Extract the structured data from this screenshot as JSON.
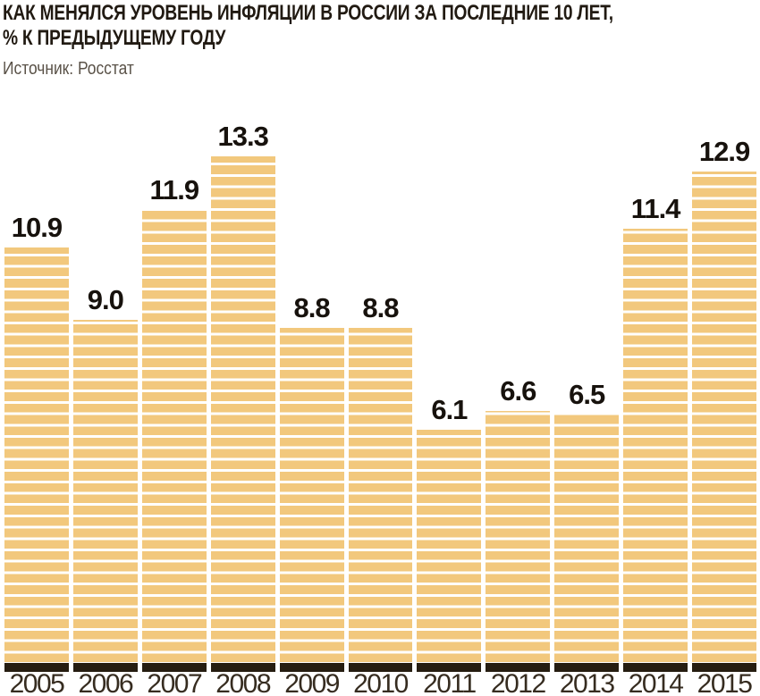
{
  "header": {
    "title_line1": "КАК МЕНЯЛСЯ УРОВЕНЬ ИНФЛЯЦИИ В РОССИИ ЗА ПОСЛЕДНИЕ 10 ЛЕТ,",
    "title_line2": "% К ПРЕДЫДУЩЕМУ ГОДУ",
    "source": "Источник: Росстат"
  },
  "chart_data": {
    "type": "bar",
    "title": "КАК МЕНЯЛСЯ УРОВЕНЬ ИНФЛЯЦИИ В РОССИИ ЗА ПОСЛЕДНИЕ 10 ЛЕТ, % К ПРЕДЫДУЩЕМУ ГОДУ",
    "source": "Источник: Росстат",
    "categories": [
      "2005",
      "2006",
      "2007",
      "2008",
      "2009",
      "2010",
      "2011",
      "2012",
      "2013",
      "2014",
      "2015"
    ],
    "values": [
      10.9,
      9.0,
      11.9,
      13.3,
      8.8,
      8.8,
      6.1,
      6.6,
      6.5,
      11.4,
      12.9
    ],
    "value_labels": [
      "10.9",
      "9.0",
      "11.9",
      "13.3",
      "8.8",
      "8.8",
      "6.1",
      "6.6",
      "6.5",
      "11.4",
      "12.9"
    ],
    "unit": "% к предыдущему году",
    "ylim": [
      0,
      13.3
    ],
    "grid": false,
    "legend": false,
    "data_labels_position": "above-bars",
    "colors": {
      "bar": "#F2C87D",
      "stripe": "#FFFFFF",
      "base": "#261D11",
      "title": "#211A12",
      "source": "#5A5248",
      "value_label": "#17120D",
      "year_label": "#362C20"
    }
  }
}
